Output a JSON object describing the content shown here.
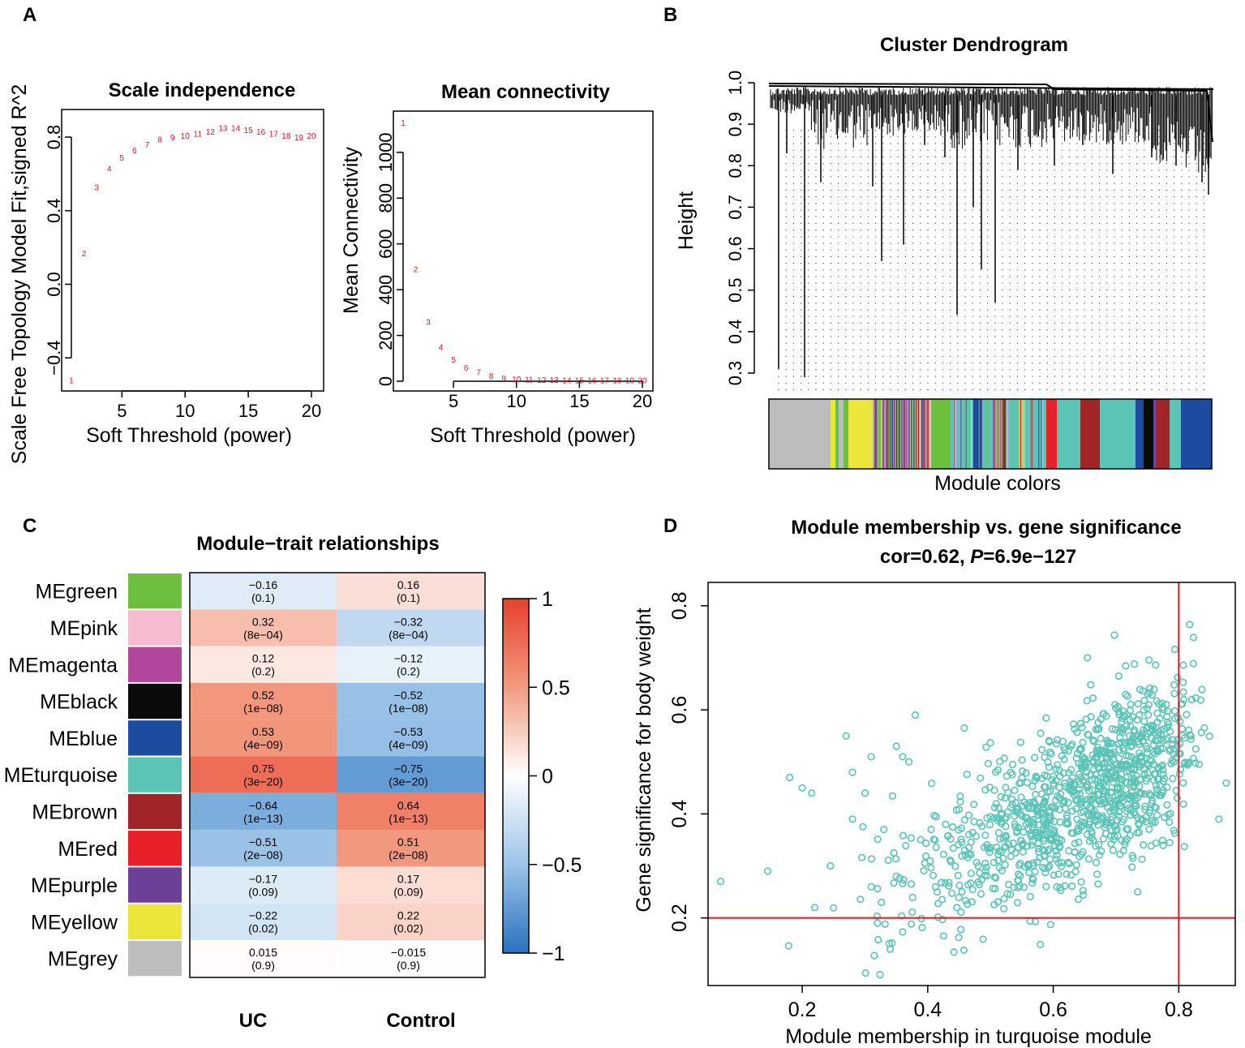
{
  "panel_letters": {
    "a": "A",
    "b": "B",
    "c": "C",
    "d": "D"
  },
  "chart_data": [
    {
      "type": "scatter",
      "panel": "A-left",
      "title": "Scale independence",
      "xlabel": "Soft Threshold (power)",
      "ylabel": "Scale Free Topology Model Fit,signed R^2",
      "xlim": [
        1,
        20
      ],
      "ylim": [
        -0.58,
        0.95
      ],
      "xticks": [
        5,
        10,
        15,
        20
      ],
      "yticks": [
        -0.4,
        0.0,
        0.4,
        0.8
      ],
      "point_labels": [
        "1",
        "2",
        "3",
        "4",
        "5",
        "6",
        "7",
        "8",
        "9",
        "10",
        "11",
        "12",
        "13",
        "14",
        "15",
        "16",
        "17",
        "18",
        "19",
        "20"
      ],
      "x": [
        1,
        2,
        3,
        4,
        5,
        6,
        7,
        8,
        9,
        10,
        11,
        12,
        13,
        14,
        15,
        16,
        17,
        18,
        19,
        20
      ],
      "y": [
        -0.52,
        0.17,
        0.53,
        0.63,
        0.69,
        0.73,
        0.76,
        0.79,
        0.8,
        0.81,
        0.82,
        0.83,
        0.85,
        0.85,
        0.84,
        0.83,
        0.82,
        0.81,
        0.8,
        0.81
      ]
    },
    {
      "type": "scatter",
      "panel": "A-right",
      "title": "Mean connectivity",
      "xlabel": "Soft Threshold (power)",
      "ylabel": "Mean Connectivity",
      "xlim": [
        1,
        20
      ],
      "ylim": [
        0,
        1180
      ],
      "xticks": [
        5,
        10,
        15,
        20
      ],
      "yticks": [
        0,
        200,
        400,
        600,
        800,
        1000
      ],
      "point_labels": [
        "1",
        "2",
        "3",
        "4",
        "5",
        "6",
        "7",
        "8",
        "9",
        "10",
        "11",
        "12",
        "13",
        "14",
        "15",
        "16",
        "17",
        "18",
        "19",
        "20"
      ],
      "x": [
        1,
        2,
        3,
        4,
        5,
        6,
        7,
        8,
        9,
        10,
        11,
        12,
        13,
        14,
        15,
        16,
        17,
        18,
        19,
        20
      ],
      "y": [
        1130,
        490,
        260,
        150,
        95,
        60,
        40,
        25,
        15,
        10,
        8,
        7,
        7,
        6,
        6,
        6,
        6,
        6,
        6,
        6
      ]
    },
    {
      "type": "dendrogram",
      "panel": "B",
      "title": "Cluster Dendrogram",
      "ylabel": "Height",
      "xlabel": "Module colors",
      "ylim": [
        0.27,
        1.0
      ],
      "yticks": [
        0.3,
        0.4,
        0.5,
        0.6,
        0.7,
        0.8,
        0.9,
        1.0
      ],
      "module_color_bar": [
        "grey",
        "yellow",
        "mixed",
        "green",
        "turquoise",
        "red",
        "turquoise",
        "brown",
        "turquoise",
        "black",
        "brown",
        "turquoise",
        "blue"
      ]
    },
    {
      "type": "heatmap",
      "panel": "C",
      "title": "Module−trait relationships",
      "columns": [
        "UC",
        "Control"
      ],
      "colorbar_ticks": [
        "1",
        "0.5",
        "0",
        "−0.5",
        "−1"
      ],
      "rows": [
        {
          "module": "MEgreen",
          "color": "#6cbf3f",
          "values": [
            -0.16,
            0.16
          ],
          "labels": [
            "−0.16",
            "0.16"
          ],
          "pvals": [
            "(0.1)",
            "(0.1)"
          ]
        },
        {
          "module": "MEpink",
          "color": "#f5bcd0",
          "values": [
            0.32,
            -0.32
          ],
          "labels": [
            "0.32",
            "−0.32"
          ],
          "pvals": [
            "(8e−04)",
            "(8e−04)"
          ]
        },
        {
          "module": "MEmagenta",
          "color": "#b0479c",
          "values": [
            0.12,
            -0.12
          ],
          "labels": [
            "0.12",
            "−0.12"
          ],
          "pvals": [
            "(0.2)",
            "(0.2)"
          ]
        },
        {
          "module": "MEblack",
          "color": "#0b0b0b",
          "values": [
            0.52,
            -0.52
          ],
          "labels": [
            "0.52",
            "−0.52"
          ],
          "pvals": [
            "(1e−08)",
            "(1e−08)"
          ]
        },
        {
          "module": "MEblue",
          "color": "#1c4b9f",
          "values": [
            0.53,
            -0.53
          ],
          "labels": [
            "0.53",
            "−0.53"
          ],
          "pvals": [
            "(4e−09)",
            "(4e−09)"
          ]
        },
        {
          "module": "MEturquoise",
          "color": "#5cc3b7",
          "values": [
            0.75,
            -0.75
          ],
          "labels": [
            "0.75",
            "−0.75"
          ],
          "pvals": [
            "(3e−20)",
            "(3e−20)"
          ]
        },
        {
          "module": "MEbrown",
          "color": "#a12428",
          "values": [
            -0.64,
            0.64
          ],
          "labels": [
            "−0.64",
            "0.64"
          ],
          "pvals": [
            "(1e−13)",
            "(1e−13)"
          ]
        },
        {
          "module": "MEred",
          "color": "#e8202a",
          "values": [
            -0.51,
            0.51
          ],
          "labels": [
            "−0.51",
            "0.51"
          ],
          "pvals": [
            "(2e−08)",
            "(2e−08)"
          ]
        },
        {
          "module": "MEpurple",
          "color": "#6c3f98",
          "values": [
            -0.17,
            0.17
          ],
          "labels": [
            "−0.17",
            "0.17"
          ],
          "pvals": [
            "(0.09)",
            "(0.09)"
          ]
        },
        {
          "module": "MEyellow",
          "color": "#ece53a",
          "values": [
            -0.22,
            0.22
          ],
          "labels": [
            "−0.22",
            "0.22"
          ],
          "pvals": [
            "(0.02)",
            "(0.02)"
          ]
        },
        {
          "module": "MEgrey",
          "color": "#bdbdbd",
          "values": [
            0.015,
            -0.015
          ],
          "labels": [
            "0.015",
            "−0.015"
          ],
          "pvals": [
            "(0.9)",
            "(0.9)"
          ]
        }
      ]
    },
    {
      "type": "scatter",
      "panel": "D",
      "title": "Module membership vs. gene significance",
      "subtitle_prefix": "cor=0.62, ",
      "subtitle_italic": "P",
      "subtitle_suffix": "=6.9e−127",
      "xlabel": "Module membership in turquoise module",
      "ylabel": "Gene significance for body weight",
      "xlim": [
        0.05,
        0.89
      ],
      "ylim": [
        0.07,
        0.845
      ],
      "xticks": [
        0.2,
        0.4,
        0.6,
        0.8
      ],
      "yticks": [
        0.2,
        0.4,
        0.6,
        0.8
      ],
      "hline": 0.2,
      "vline": 0.8,
      "point_color": "#5cc3b7",
      "n_points": 1100,
      "correlation": 0.62
    }
  ]
}
